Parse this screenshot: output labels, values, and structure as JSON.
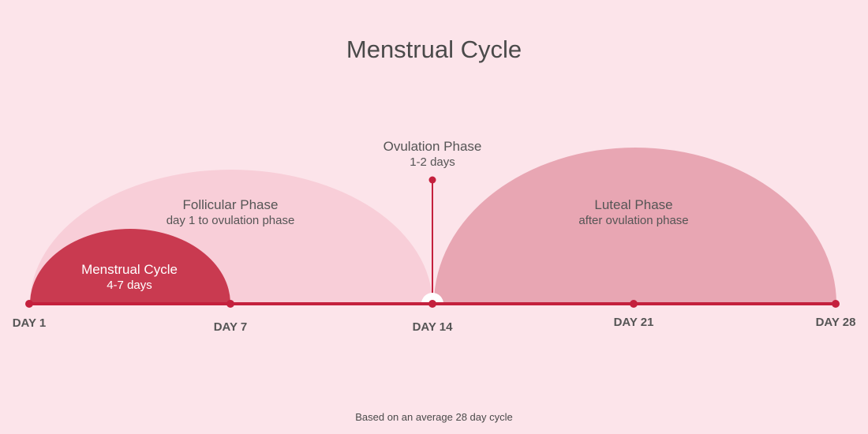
{
  "title": "Menstrual Cycle",
  "footnote": "Based on an average 28 day cycle",
  "colors": {
    "background": "#fce4ea",
    "menstrual_fill": "#c93a50",
    "follicular_fill": "#f8ced8",
    "luteal_fill": "#e8a6b3",
    "axis": "#c4203d"
  },
  "phases": {
    "menstrual": {
      "title": "Menstrual Cycle",
      "subtitle": "4-7 days"
    },
    "follicular": {
      "title": "Follicular Phase",
      "subtitle": "day 1 to ovulation phase"
    },
    "ovulation": {
      "title": "Ovulation Phase",
      "subtitle": "1-2 days"
    },
    "luteal": {
      "title": "Luteal Phase",
      "subtitle": "after ovulation phase"
    }
  },
  "days": [
    {
      "label": "DAY 1"
    },
    {
      "label": "DAY 7"
    },
    {
      "label": "DAY 14"
    },
    {
      "label": "DAY 21"
    },
    {
      "label": "DAY 28"
    }
  ]
}
